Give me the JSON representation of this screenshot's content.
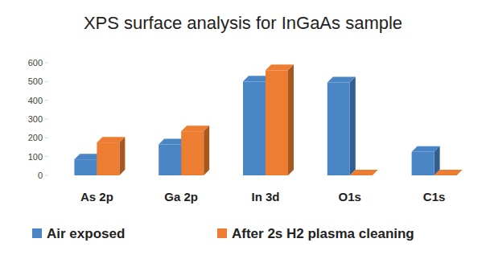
{
  "chart_data": {
    "type": "bar",
    "title": "XPS surface analysis for InGaAs sample",
    "categories": [
      "As 2p",
      "Ga 2p",
      "In 3d",
      "O1s",
      "C1s"
    ],
    "series": [
      {
        "name": "Air exposed",
        "color": "#4a86c6",
        "values": [
          85,
          165,
          500,
          495,
          125
        ]
      },
      {
        "name": "After 2s H2 plasma cleaning",
        "color": "#ed7d31",
        "values": [
          175,
          235,
          560,
          0,
          0
        ]
      }
    ],
    "ylim": [
      0,
      600
    ],
    "yticks": [
      0,
      100,
      200,
      300,
      400,
      500,
      600
    ],
    "grid": false,
    "legend": "bottom"
  }
}
